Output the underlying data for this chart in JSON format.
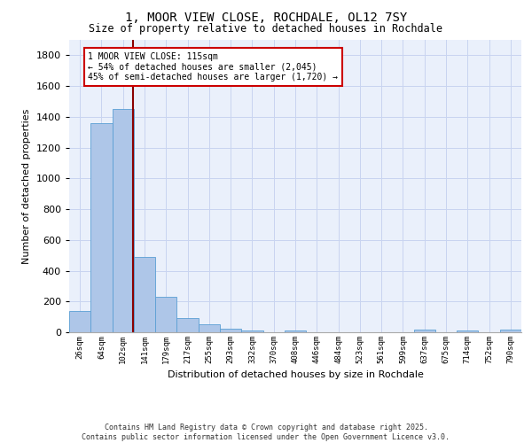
{
  "title1": "1, MOOR VIEW CLOSE, ROCHDALE, OL12 7SY",
  "title2": "Size of property relative to detached houses in Rochdale",
  "xlabel": "Distribution of detached houses by size in Rochdale",
  "ylabel": "Number of detached properties",
  "bar_categories": [
    "26sqm",
    "64sqm",
    "102sqm",
    "141sqm",
    "179sqm",
    "217sqm",
    "255sqm",
    "293sqm",
    "332sqm",
    "370sqm",
    "408sqm",
    "446sqm",
    "484sqm",
    "523sqm",
    "561sqm",
    "599sqm",
    "637sqm",
    "675sqm",
    "714sqm",
    "752sqm",
    "790sqm"
  ],
  "bar_values": [
    140,
    1360,
    1450,
    490,
    230,
    90,
    50,
    25,
    10,
    0,
    10,
    0,
    0,
    0,
    0,
    0,
    15,
    0,
    10,
    0,
    15
  ],
  "bar_color": "#aec6e8",
  "bar_edge_color": "#5a9fd4",
  "bg_color": "#eaf0fb",
  "grid_color": "#c8d4f0",
  "vline_x": 2.45,
  "vline_color": "#8b0000",
  "annotation_text": "1 MOOR VIEW CLOSE: 115sqm\n← 54% of detached houses are smaller (2,045)\n45% of semi-detached houses are larger (1,720) →",
  "annotation_box_color": "#ffffff",
  "annotation_box_edge": "#cc0000",
  "ylim": [
    0,
    1900
  ],
  "yticks": [
    0,
    200,
    400,
    600,
    800,
    1000,
    1200,
    1400,
    1600,
    1800
  ],
  "footer1": "Contains HM Land Registry data © Crown copyright and database right 2025.",
  "footer2": "Contains public sector information licensed under the Open Government Licence v3.0."
}
